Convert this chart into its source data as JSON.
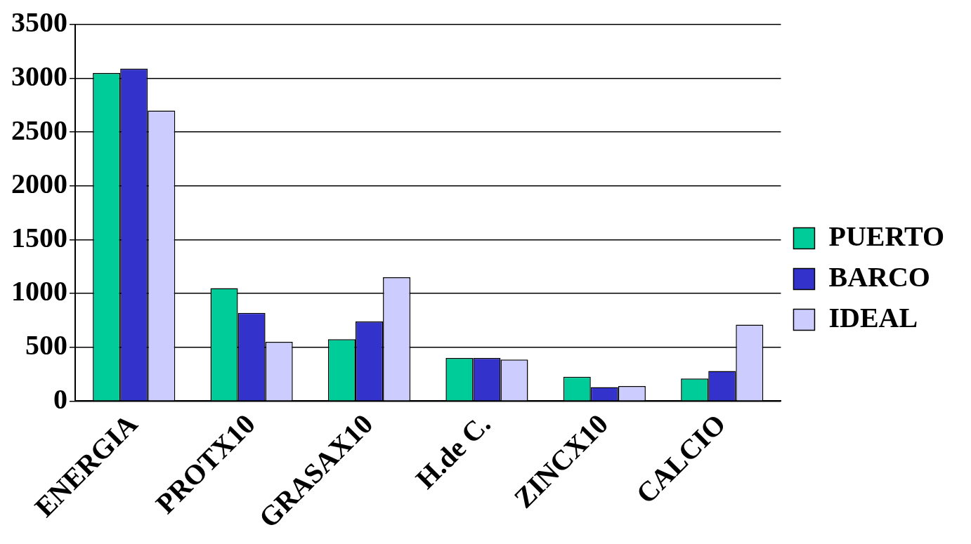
{
  "chart_data": {
    "type": "bar",
    "categories": [
      "ENERGIA",
      "PROTX10",
      "GRASAX10",
      "H.de C.",
      "ZINCX10",
      "CALCIO"
    ],
    "series": [
      {
        "name": "PUERTO",
        "color": "#00cc99",
        "values": [
          3050,
          1050,
          575,
          400,
          225,
          210
        ]
      },
      {
        "name": "BARCO",
        "color": "#3333cc",
        "values": [
          3090,
          820,
          740,
          400,
          130,
          280
        ]
      },
      {
        "name": "IDEAL",
        "color": "#ccccff",
        "values": [
          2700,
          550,
          1150,
          385,
          140,
          710
        ]
      }
    ],
    "ylim": [
      0,
      3500
    ],
    "yticks": [
      0,
      500,
      1000,
      1500,
      2000,
      2500,
      3000,
      3500
    ],
    "grid": "y",
    "legend": "right"
  }
}
